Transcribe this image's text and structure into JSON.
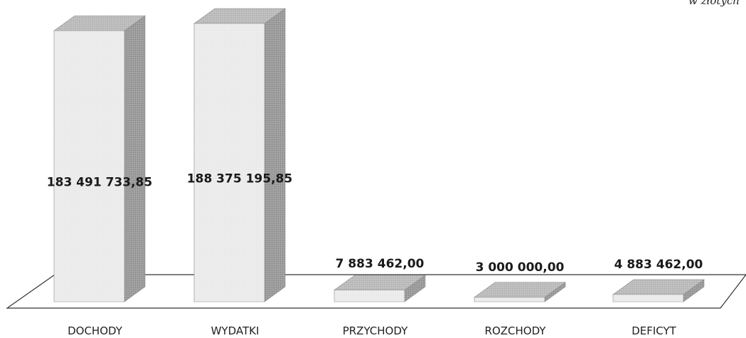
{
  "chart_data": {
    "type": "bar",
    "unit_note": "w złotych",
    "categories": [
      "DOCHODY",
      "WYDATKI",
      "PRZYCHODY",
      "ROZCHODY",
      "DEFICYT"
    ],
    "values": [
      183491733.85,
      188375195.85,
      7883462.0,
      3000000.0,
      4883462.0
    ],
    "value_labels": [
      "183 491 733,85",
      "188 375 195,85",
      "7 883 462,00",
      "3 000 000,00",
      "4 883 462,00"
    ],
    "ylim": [
      0,
      188375195.85
    ],
    "grid": false,
    "legend": "none",
    "style": "3d-column",
    "colors": {
      "front": "#ececec",
      "side": "#9c9c9c",
      "top": "#c2c2c2",
      "floor_line": "#333333"
    }
  }
}
